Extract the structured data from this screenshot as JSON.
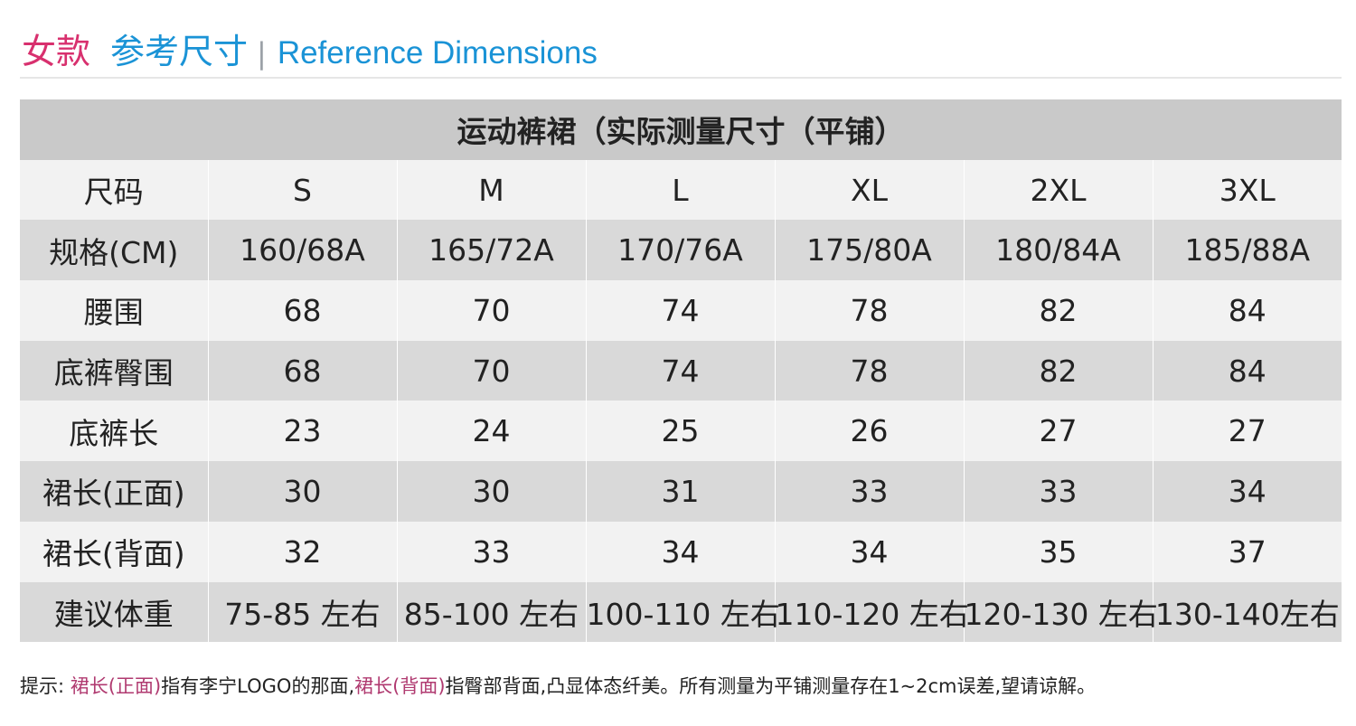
{
  "header": {
    "women": "女款",
    "reference_cn": "参考尺寸",
    "separator": "|",
    "reference_en": "Reference Dimensions"
  },
  "table": {
    "title": "运动裤裙（实际测量尺寸（平铺）",
    "rows": [
      {
        "label": "尺码",
        "values": [
          "S",
          "M",
          "L",
          "XL",
          "2XL",
          "3XL"
        ]
      },
      {
        "label": "规格(CM)",
        "values": [
          "160/68A",
          "165/72A",
          "170/76A",
          "175/80A",
          "180/84A",
          "185/88A"
        ]
      },
      {
        "label": "腰围",
        "values": [
          "68",
          "70",
          "74",
          "78",
          "82",
          "84"
        ]
      },
      {
        "label": "底裤臀围",
        "values": [
          "68",
          "70",
          "74",
          "78",
          "82",
          "84"
        ]
      },
      {
        "label": "底裤长",
        "values": [
          "23",
          "24",
          "25",
          "26",
          "27",
          "27"
        ]
      },
      {
        "label": "裙长(正面)",
        "values": [
          "30",
          "30",
          "31",
          "33",
          "33",
          "34"
        ]
      },
      {
        "label": "裙长(背面)",
        "values": [
          "32",
          "33",
          "34",
          "34",
          "35",
          "37"
        ]
      },
      {
        "label": "建议体重",
        "values": [
          "75-85 左右",
          "85-100 左右",
          "100-110 左右",
          "110-120 左右",
          "120-130 左右",
          "130-140左右"
        ]
      }
    ]
  },
  "note": {
    "prefix": "提示: ",
    "front_label": "裙长(正面)",
    "front_text": "指有李宁LOGO的那面,",
    "back_label": "裙长(背面)",
    "back_text": "指臀部背面,凸显体态纤美。所有测量为平铺测量存在1~2cm误差,望请谅解。"
  },
  "colors": {
    "women_accent": "#d8306e",
    "reference_accent": "#1a93d6",
    "note_highlight": "#b03a70",
    "title_row_bg": "#c9c9c9",
    "row_dark_bg": "#d9d9d9",
    "row_light_bg": "#f2f2f2"
  }
}
